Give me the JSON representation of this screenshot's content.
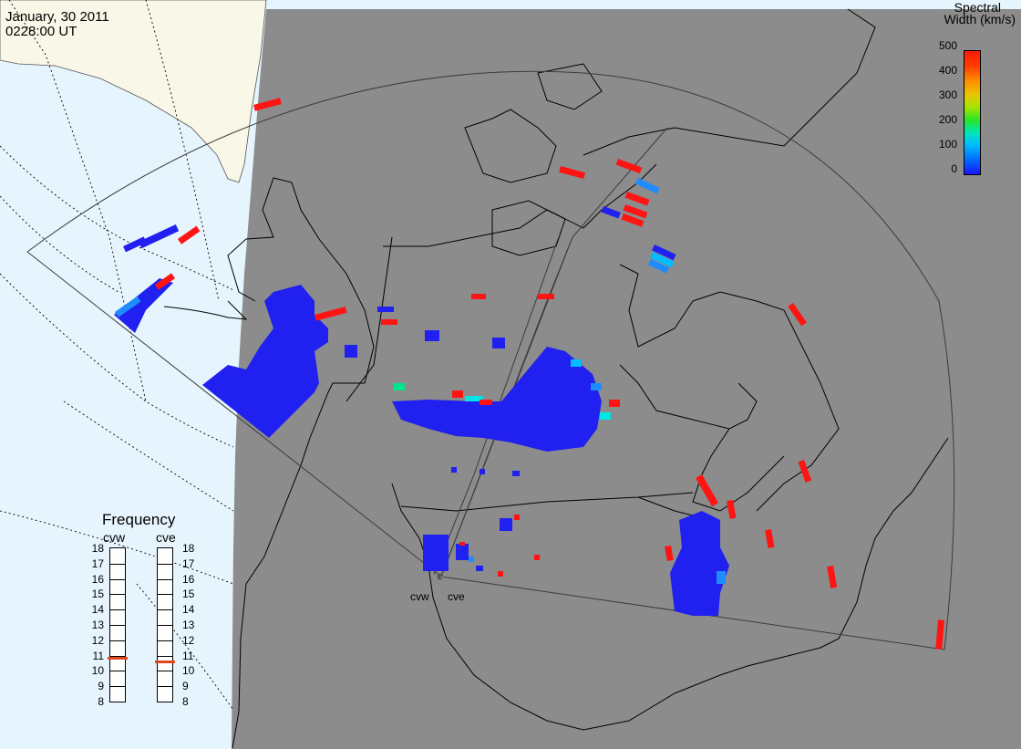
{
  "header": {
    "date": "January, 30 2011",
    "time": "0228:00 UT"
  },
  "colorbar": {
    "title_line1": "Spectral",
    "title_line2": "Width (km/s)",
    "ticks": [
      "500",
      "400",
      "300",
      "200",
      "100",
      "0"
    ]
  },
  "frequency_panel": {
    "title": "Frequency",
    "radars": [
      {
        "name": "cvw",
        "frequency_mhz": 10.8
      },
      {
        "name": "cve",
        "frequency_mhz": 10.6
      }
    ],
    "scale": [
      "18",
      "17",
      "16",
      "15",
      "14",
      "13",
      "12",
      "11",
      "10",
      "9",
      "8"
    ]
  },
  "radar_sites": {
    "west": "cvw",
    "east": "cve"
  },
  "colors": {
    "night": "#8c8c8c",
    "ocean_day": "#e6f5fd",
    "land_day": "#f8f7e8",
    "high_width": "#ff1414",
    "low_width": "#2020f0",
    "mid_width": "#1e8cff",
    "cyan_width": "#00e6e6"
  }
}
